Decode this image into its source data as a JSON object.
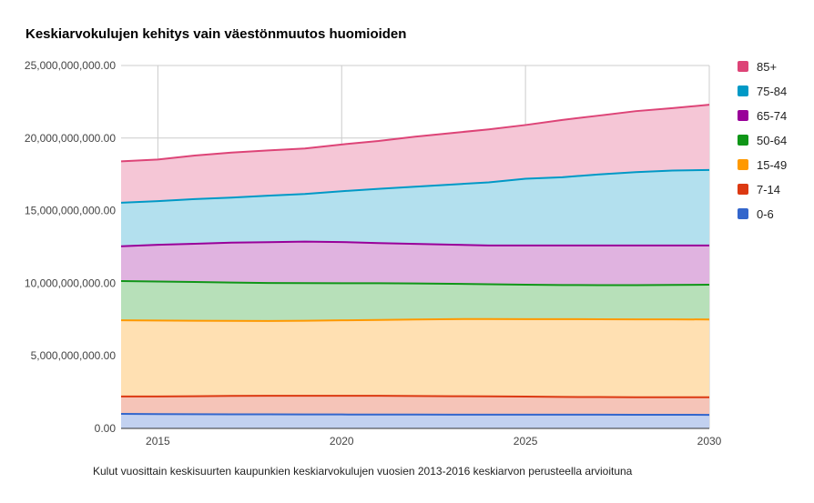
{
  "chart_data": {
    "type": "area",
    "stacked": true,
    "title": "Keskiarvokulujen kehitys vain väestönmuutos huomioiden",
    "caption": "Kulut vuosittain keskisuurten kaupunkien keskiarvokulujen vuosien 2013-2016 keskiarvon perusteella arvioituna",
    "xlabel": "",
    "ylabel": "",
    "x": [
      2014,
      2015,
      2016,
      2017,
      2018,
      2019,
      2020,
      2021,
      2022,
      2023,
      2024,
      2025,
      2026,
      2027,
      2028,
      2029,
      2030
    ],
    "xlim": [
      2014,
      2030
    ],
    "ylim": [
      0,
      25000000000
    ],
    "x_ticks": [
      "2015",
      "2020",
      "2025",
      "2030"
    ],
    "x_tick_values": [
      2015,
      2020,
      2025,
      2030
    ],
    "y_ticks": [
      "0.00",
      "5,000,000,000.00",
      "10,000,000,000.00",
      "15,000,000,000.00",
      "20,000,000,000.00",
      "25,000,000,000.00"
    ],
    "y_tick_values": [
      0,
      5000000000,
      10000000000,
      15000000000,
      20000000000,
      25000000000
    ],
    "grid": true,
    "legend_position": "right",
    "series": [
      {
        "name": "0-6",
        "line_color": "#3366cc",
        "fill_color": "#c2d1f0",
        "values": [
          1000000000,
          990000000,
          980000000,
          975000000,
          970000000,
          965000000,
          960000000,
          955000000,
          955000000,
          950000000,
          950000000,
          950000000,
          945000000,
          945000000,
          940000000,
          940000000,
          935000000
        ]
      },
      {
        "name": "7-14",
        "line_color": "#dc3912",
        "fill_color": "#f5c4b8",
        "values": [
          1200000000,
          1210000000,
          1240000000,
          1265000000,
          1275000000,
          1280000000,
          1285000000,
          1290000000,
          1280000000,
          1270000000,
          1255000000,
          1240000000,
          1225000000,
          1215000000,
          1210000000,
          1210000000,
          1210000000
        ]
      },
      {
        "name": "15-49",
        "line_color": "#ff9900",
        "fill_color": "#ffe0b2",
        "values": [
          5250000000,
          5230000000,
          5200000000,
          5170000000,
          5160000000,
          5175000000,
          5200000000,
          5230000000,
          5270000000,
          5310000000,
          5330000000,
          5340000000,
          5360000000,
          5360000000,
          5360000000,
          5360000000,
          5360000000
        ]
      },
      {
        "name": "50-64",
        "line_color": "#109618",
        "fill_color": "#b7e0b9",
        "values": [
          2700000000,
          2690000000,
          2670000000,
          2640000000,
          2615000000,
          2590000000,
          2560000000,
          2525000000,
          2480000000,
          2435000000,
          2395000000,
          2370000000,
          2350000000,
          2345000000,
          2360000000,
          2375000000,
          2395000000
        ]
      },
      {
        "name": "65-74",
        "line_color": "#990099",
        "fill_color": "#e0b3e0",
        "values": [
          2400000000,
          2530000000,
          2630000000,
          2750000000,
          2810000000,
          2860000000,
          2835000000,
          2770000000,
          2725000000,
          2695000000,
          2670000000,
          2700000000,
          2720000000,
          2735000000,
          2735000000,
          2715000000,
          2700000000
        ]
      },
      {
        "name": "75-84",
        "line_color": "#0099c6",
        "fill_color": "#b3e0ee",
        "values": [
          3000000000,
          3010000000,
          3080000000,
          3100000000,
          3200000000,
          3280000000,
          3500000000,
          3730000000,
          3940000000,
          4140000000,
          4350000000,
          4600000000,
          4700000000,
          4900000000,
          5050000000,
          5160000000,
          5200000000
        ]
      },
      {
        "name": "85+",
        "line_color": "#dd4477",
        "fill_color": "#f5c6d6",
        "values": [
          2850000000,
          2860000000,
          3000000000,
          3100000000,
          3120000000,
          3130000000,
          3220000000,
          3300000000,
          3450000000,
          3550000000,
          3650000000,
          3700000000,
          3950000000,
          4050000000,
          4200000000,
          4300000000,
          4500000000
        ]
      }
    ]
  }
}
